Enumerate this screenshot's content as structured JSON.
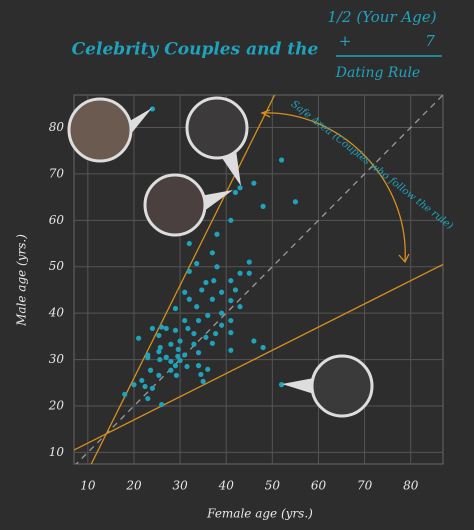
{
  "chart_data": {
    "type": "scatter",
    "title": "Celebrity Couples and the",
    "formula": {
      "top": "1/2 (Your Age)",
      "plus": "+",
      "seven": "7",
      "bottom": "Dating Rule"
    },
    "annotation": "Safe Area (Couples who follow the rule)",
    "x_label": "Female age (yrs.)",
    "y_label": "Male age (yrs.)",
    "xlim": [
      7,
      87
    ],
    "ylim": [
      7.5,
      87
    ],
    "xticks": [
      10,
      20,
      30,
      40,
      50,
      60,
      70,
      80
    ],
    "yticks": [
      10,
      20,
      30,
      40,
      50,
      60,
      70,
      80
    ],
    "grid": true,
    "series": [
      {
        "color": "#1fa3bd",
        "x": [
          24,
          52,
          55,
          46,
          43,
          42,
          48,
          41,
          38,
          32,
          37,
          33.6,
          38,
          45,
          43,
          45,
          32,
          35.6,
          37.3,
          41,
          42,
          39,
          34.7,
          37,
          41,
          43,
          31,
          32,
          33.6,
          29,
          39,
          36,
          34,
          31,
          41,
          39,
          26,
          27,
          24,
          29,
          31.7,
          33,
          37.7,
          35.6,
          41,
          21,
          25.4,
          30,
          28,
          46,
          33,
          37,
          25.7,
          29.6,
          25.4,
          34,
          41,
          48,
          23,
          27,
          29.5,
          31,
          23,
          28,
          30,
          25.6,
          29,
          28,
          34,
          31.5,
          36,
          29.2,
          23.6,
          25.4,
          21.7,
          34.5,
          35,
          20,
          22.4,
          24,
          18,
          23,
          26,
          52
        ],
        "values": [
          84,
          73,
          64,
          68,
          67,
          66,
          63,
          60,
          57,
          55,
          53,
          50.7,
          50,
          51,
          48.6,
          48.6,
          49,
          46.6,
          47,
          47,
          45,
          44.5,
          45,
          43,
          42.7,
          41.4,
          44.5,
          43,
          41.4,
          41,
          40,
          39.5,
          38.4,
          38.4,
          38.4,
          37.4,
          37,
          36.7,
          36.7,
          36.3,
          36.7,
          35.6,
          35.6,
          34.8,
          35.8,
          34.6,
          35.2,
          34,
          33.3,
          34,
          33.3,
          33.5,
          32.6,
          32.2,
          31.7,
          31.5,
          32,
          32.6,
          31,
          30.5,
          30.7,
          31,
          30.4,
          29.6,
          29.8,
          30,
          28.7,
          27.7,
          28.7,
          28.5,
          27.9,
          26.6,
          27.7,
          26.6,
          25.5,
          26.8,
          25.3,
          24.6,
          24.2,
          23.8,
          22.5,
          21.6,
          20.3,
          24.6
        ]
      }
    ],
    "reference_lines": [
      {
        "x": [
          7,
          87
        ],
        "y": [
          7,
          87
        ],
        "color": "#9a9a9a",
        "dashed": true
      },
      {
        "x": [
          10.5,
          50.5
        ],
        "y": [
          7,
          87
        ],
        "color": "#d4901e",
        "dashed": false
      },
      {
        "x": [
          7,
          87
        ],
        "y": [
          10.5,
          50.5
        ],
        "color": "#d4901e",
        "dashed": false
      }
    ]
  }
}
